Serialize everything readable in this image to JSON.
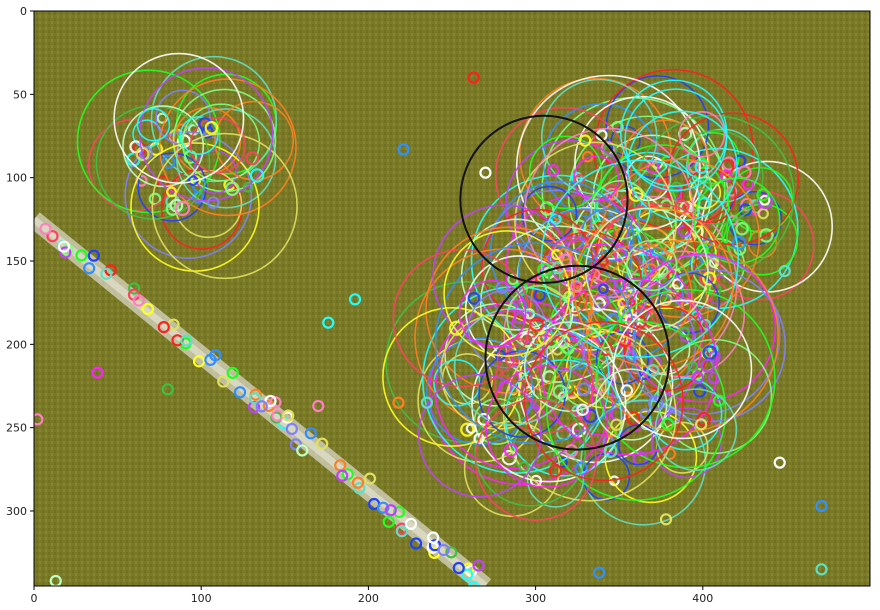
{
  "chart_data": {
    "type": "image",
    "title": "",
    "xlabel": "",
    "ylabel": "",
    "image_size": [
      500,
      345
    ],
    "xlim": [
      0,
      500
    ],
    "ylim": [
      345,
      0
    ],
    "xticks": [
      0,
      100,
      200,
      300,
      400
    ],
    "yticks": [
      0,
      50,
      100,
      150,
      200,
      250,
      300
    ],
    "description_free_content": "aerial grass field photo with painted chalk line and keypoint detection circles",
    "background": {
      "grass_color": "#7a7a26",
      "grass_shadow": "#5f6320",
      "chalk_color": "#d8d6c4"
    },
    "chalk_line": {
      "from": [
        0,
        125
      ],
      "to": [
        270,
        345
      ],
      "width": 12
    },
    "keypoint_clusters": [
      {
        "name": "cluster-top-left",
        "center": [
          97,
          90
        ],
        "count": 60,
        "spread": 38,
        "max_radius": 45
      },
      {
        "name": "cluster-right-upper",
        "center": [
          370,
          125
        ],
        "count": 170,
        "spread": 70,
        "max_radius": 55
      },
      {
        "name": "cluster-right-lower",
        "center": [
          330,
          215
        ],
        "count": 200,
        "spread": 85,
        "max_radius": 60
      }
    ],
    "line_keypoints": {
      "count": 70,
      "radius": 3
    },
    "scattered_keypoints": [
      [
        13,
        342
      ],
      [
        263,
        40
      ],
      [
        221,
        83
      ],
      [
        192,
        173
      ],
      [
        176,
        187
      ],
      [
        38,
        217
      ],
      [
        80,
        227
      ],
      [
        170,
        237
      ],
      [
        235,
        235
      ],
      [
        218,
        235
      ],
      [
        446,
        271
      ],
      [
        471,
        297
      ],
      [
        471,
        335
      ],
      [
        338,
        337
      ],
      [
        378,
        305
      ],
      [
        399,
        248
      ],
      [
        449,
        156
      ],
      [
        2,
        245
      ],
      [
        270,
        97
      ]
    ],
    "black_circles": [
      {
        "center": [
          305,
          113
        ],
        "radius": 50
      },
      {
        "center": [
          325,
          208
        ],
        "radius": 55
      }
    ],
    "palette": [
      "#ff2020",
      "#20ff20",
      "#2040ff",
      "#ff20ff",
      "#20ffff",
      "#ffff20",
      "#ff8020",
      "#80ff80",
      "#8080ff",
      "#ff80c0",
      "#c0ffc0",
      "#40c040",
      "#e0e060",
      "#c040ff",
      "#ffffff",
      "#3090ff",
      "#ff4060",
      "#60e0c0"
    ]
  }
}
